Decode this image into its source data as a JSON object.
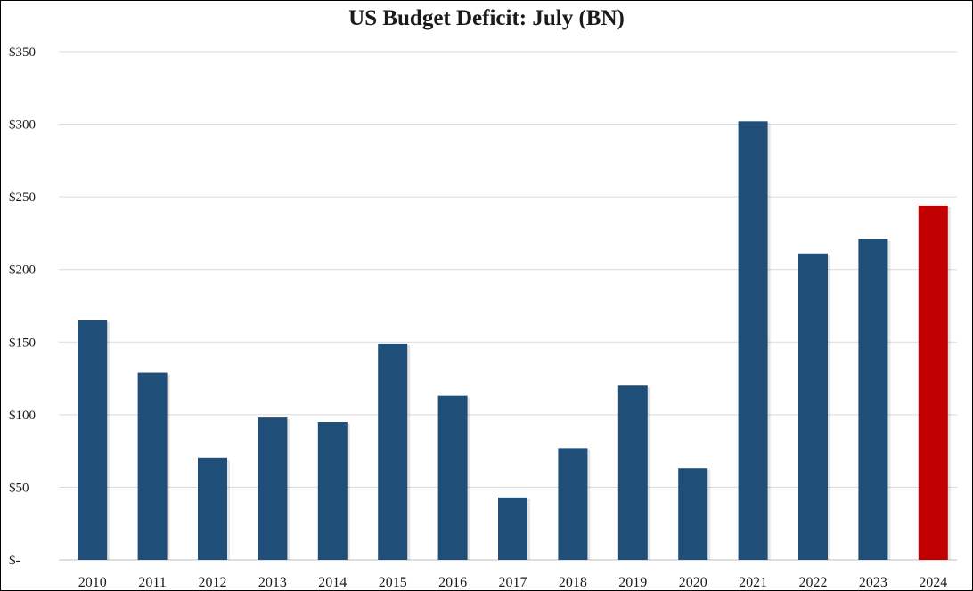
{
  "chart_data": {
    "type": "bar",
    "title": "US Budget Deficit: July  (BN)",
    "xlabel": "",
    "ylabel": "",
    "categories": [
      "2010",
      "2011",
      "2012",
      "2013",
      "2014",
      "2015",
      "2016",
      "2017",
      "2018",
      "2019",
      "2020",
      "2021",
      "2022",
      "2023",
      "2024"
    ],
    "values": [
      165,
      129,
      70,
      98,
      95,
      149,
      113,
      43,
      77,
      120,
      63,
      302,
      211,
      221,
      244
    ],
    "ylim": [
      0,
      350
    ],
    "yticks": [
      {
        "value": 0,
        "label": "$-"
      },
      {
        "value": 50,
        "label": "$50"
      },
      {
        "value": 100,
        "label": "$100"
      },
      {
        "value": 150,
        "label": "$150"
      },
      {
        "value": 200,
        "label": "$200"
      },
      {
        "value": 250,
        "label": "$250"
      },
      {
        "value": 300,
        "label": "$300"
      },
      {
        "value": 350,
        "label": "$350"
      }
    ],
    "grid": true,
    "legend": "none",
    "colors": {
      "bar": "#1F4E79",
      "highlight": "#C00000",
      "grid": "#D9D9D9",
      "text": "#1a1a1a"
    },
    "highlight_index": 14
  }
}
